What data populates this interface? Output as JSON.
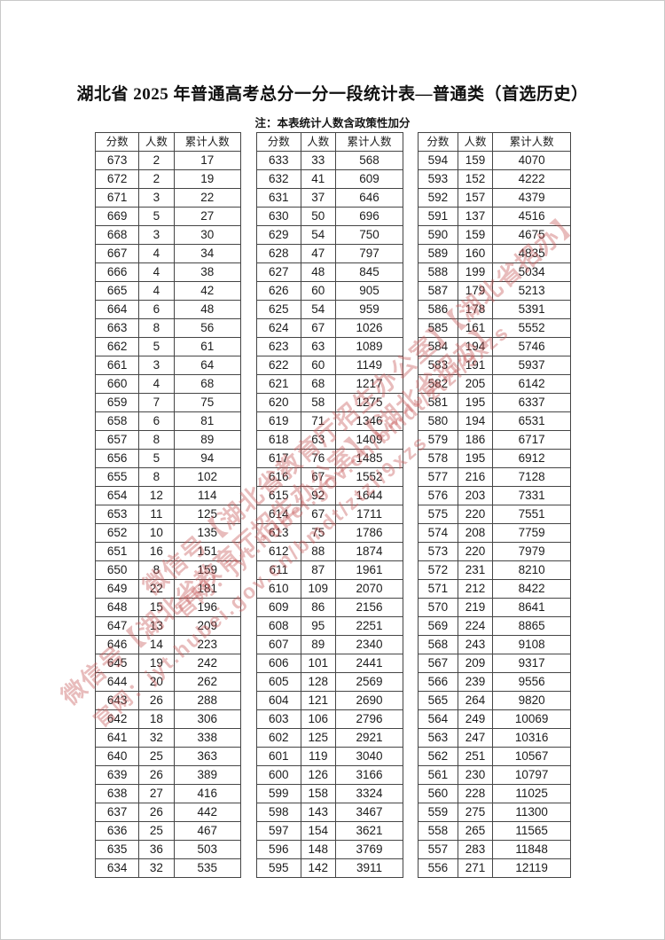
{
  "title": "湖北省 2025 年普通高考总分一分一段统计表—普通类（首选历史）",
  "note": "注：本表统计人数含政策性加分",
  "column_headers": [
    "分数",
    "人数",
    "累计人数"
  ],
  "watermark": {
    "line1": "微信号【湖北省教育厅招生办公室】【湖北省招办】",
    "line2": "官网：jyt.hubei.gov.cn/bmdt/ztzl/9xzs",
    "color": "#c85a5a"
  },
  "tables": [
    {
      "rows": [
        [
          673,
          2,
          17
        ],
        [
          672,
          2,
          19
        ],
        [
          671,
          3,
          22
        ],
        [
          669,
          5,
          27
        ],
        [
          668,
          3,
          30
        ],
        [
          667,
          4,
          34
        ],
        [
          666,
          4,
          38
        ],
        [
          665,
          4,
          42
        ],
        [
          664,
          6,
          48
        ],
        [
          663,
          8,
          56
        ],
        [
          662,
          5,
          61
        ],
        [
          661,
          3,
          64
        ],
        [
          660,
          4,
          68
        ],
        [
          659,
          7,
          75
        ],
        [
          658,
          6,
          81
        ],
        [
          657,
          8,
          89
        ],
        [
          656,
          5,
          94
        ],
        [
          655,
          8,
          102
        ],
        [
          654,
          12,
          114
        ],
        [
          653,
          11,
          125
        ],
        [
          652,
          10,
          135
        ],
        [
          651,
          16,
          151
        ],
        [
          650,
          8,
          159
        ],
        [
          649,
          22,
          181
        ],
        [
          648,
          15,
          196
        ],
        [
          647,
          13,
          209
        ],
        [
          646,
          14,
          223
        ],
        [
          645,
          19,
          242
        ],
        [
          644,
          20,
          262
        ],
        [
          643,
          26,
          288
        ],
        [
          642,
          18,
          306
        ],
        [
          641,
          32,
          338
        ],
        [
          640,
          25,
          363
        ],
        [
          639,
          26,
          389
        ],
        [
          638,
          27,
          416
        ],
        [
          637,
          26,
          442
        ],
        [
          636,
          25,
          467
        ],
        [
          635,
          36,
          503
        ],
        [
          634,
          32,
          535
        ]
      ]
    },
    {
      "rows": [
        [
          633,
          33,
          568
        ],
        [
          632,
          41,
          609
        ],
        [
          631,
          37,
          646
        ],
        [
          630,
          50,
          696
        ],
        [
          629,
          54,
          750
        ],
        [
          628,
          47,
          797
        ],
        [
          627,
          48,
          845
        ],
        [
          626,
          60,
          905
        ],
        [
          625,
          54,
          959
        ],
        [
          624,
          67,
          1026
        ],
        [
          623,
          63,
          1089
        ],
        [
          622,
          60,
          1149
        ],
        [
          621,
          68,
          1217
        ],
        [
          620,
          58,
          1275
        ],
        [
          619,
          71,
          1346
        ],
        [
          618,
          63,
          1409
        ],
        [
          617,
          76,
          1485
        ],
        [
          616,
          67,
          1552
        ],
        [
          615,
          92,
          1644
        ],
        [
          614,
          67,
          1711
        ],
        [
          613,
          75,
          1786
        ],
        [
          612,
          88,
          1874
        ],
        [
          611,
          87,
          1961
        ],
        [
          610,
          109,
          2070
        ],
        [
          609,
          86,
          2156
        ],
        [
          608,
          95,
          2251
        ],
        [
          607,
          89,
          2340
        ],
        [
          606,
          101,
          2441
        ],
        [
          605,
          128,
          2569
        ],
        [
          604,
          121,
          2690
        ],
        [
          603,
          106,
          2796
        ],
        [
          602,
          125,
          2921
        ],
        [
          601,
          119,
          3040
        ],
        [
          600,
          126,
          3166
        ],
        [
          599,
          158,
          3324
        ],
        [
          598,
          143,
          3467
        ],
        [
          597,
          154,
          3621
        ],
        [
          596,
          148,
          3769
        ],
        [
          595,
          142,
          3911
        ]
      ]
    },
    {
      "rows": [
        [
          594,
          159,
          4070
        ],
        [
          593,
          152,
          4222
        ],
        [
          592,
          157,
          4379
        ],
        [
          591,
          137,
          4516
        ],
        [
          590,
          159,
          4675
        ],
        [
          589,
          160,
          4835
        ],
        [
          588,
          199,
          5034
        ],
        [
          587,
          179,
          5213
        ],
        [
          586,
          178,
          5391
        ],
        [
          585,
          161,
          5552
        ],
        [
          584,
          194,
          5746
        ],
        [
          583,
          191,
          5937
        ],
        [
          582,
          205,
          6142
        ],
        [
          581,
          195,
          6337
        ],
        [
          580,
          194,
          6531
        ],
        [
          579,
          186,
          6717
        ],
        [
          578,
          195,
          6912
        ],
        [
          577,
          216,
          7128
        ],
        [
          576,
          203,
          7331
        ],
        [
          575,
          220,
          7551
        ],
        [
          574,
          208,
          7759
        ],
        [
          573,
          220,
          7979
        ],
        [
          572,
          231,
          8210
        ],
        [
          571,
          212,
          8422
        ],
        [
          570,
          219,
          8641
        ],
        [
          569,
          224,
          8865
        ],
        [
          568,
          243,
          9108
        ],
        [
          567,
          209,
          9317
        ],
        [
          566,
          239,
          9556
        ],
        [
          565,
          264,
          9820
        ],
        [
          564,
          249,
          10069
        ],
        [
          563,
          247,
          10316
        ],
        [
          562,
          251,
          10567
        ],
        [
          561,
          230,
          10797
        ],
        [
          560,
          228,
          11025
        ],
        [
          559,
          275,
          11300
        ],
        [
          558,
          265,
          11565
        ],
        [
          557,
          283,
          11848
        ],
        [
          556,
          271,
          12119
        ]
      ]
    }
  ]
}
